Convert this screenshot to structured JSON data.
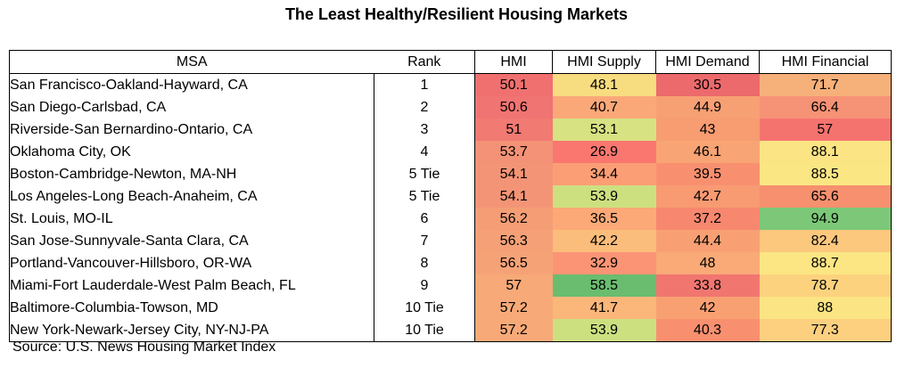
{
  "title": "The Least Healthy/Resilient Housing Markets",
  "source": "Source:  U.S. News Housing Market Index",
  "chart_data": {
    "type": "table",
    "columns": [
      "MSA",
      "Rank",
      "HMI",
      "HMI Supply",
      "HMI Demand",
      "HMI Financial"
    ],
    "rows": [
      {
        "msa": "San Francisco-Oakland-Hayward, CA",
        "rank": "1",
        "values": [
          "50.1",
          "48.1",
          "30.5",
          "71.7"
        ]
      },
      {
        "msa": "San Diego-Carlsbad, CA",
        "rank": "2",
        "values": [
          "50.6",
          "40.7",
          "44.9",
          "66.4"
        ]
      },
      {
        "msa": "Riverside-San Bernardino-Ontario, CA",
        "rank": "3",
        "values": [
          "51",
          "53.1",
          "43",
          "57"
        ]
      },
      {
        "msa": "Oklahoma City, OK",
        "rank": "4",
        "values": [
          "53.7",
          "26.9",
          "46.1",
          "88.1"
        ]
      },
      {
        "msa": "Boston-Cambridge-Newton, MA-NH",
        "rank": "5 Tie",
        "values": [
          "54.1",
          "34.4",
          "39.5",
          "88.5"
        ]
      },
      {
        "msa": "Los Angeles-Long Beach-Anaheim, CA",
        "rank": "5 Tie",
        "values": [
          "54.1",
          "53.9",
          "42.7",
          "65.6"
        ]
      },
      {
        "msa": "St. Louis, MO-IL",
        "rank": "6",
        "values": [
          "56.2",
          "36.5",
          "37.2",
          "94.9"
        ]
      },
      {
        "msa": "San Jose-Sunnyvale-Santa Clara, CA",
        "rank": "7",
        "values": [
          "56.3",
          "42.2",
          "44.4",
          "82.4"
        ]
      },
      {
        "msa": "Portland-Vancouver-Hillsboro, OR-WA",
        "rank": "8",
        "values": [
          "56.5",
          "32.9",
          "48",
          "88.7"
        ]
      },
      {
        "msa": "Miami-Fort Lauderdale-West Palm Beach, FL",
        "rank": "9",
        "values": [
          "57",
          "58.5",
          "33.8",
          "78.7"
        ]
      },
      {
        "msa": "Baltimore-Columbia-Towson, MD",
        "rank": "10 Tie",
        "values": [
          "57.2",
          "41.7",
          "42",
          "88"
        ]
      },
      {
        "msa": "New York-Newark-Jersey City, NY-NJ-PA",
        "rank": "10 Tie",
        "values": [
          "57.2",
          "53.9",
          "40.3",
          "77.3"
        ]
      }
    ],
    "cell_colors": [
      [
        "#f07070",
        "#f8dc80",
        "#ec6a6c",
        "#f6b07a"
      ],
      [
        "#f07472",
        "#fba878",
        "#f7a074",
        "#f69276"
      ],
      [
        "#f17a72",
        "#d7e283",
        "#f89c72",
        "#f5736f"
      ],
      [
        "#f39276",
        "#f9776f",
        "#f8a474",
        "#fbe483"
      ],
      [
        "#f49476",
        "#fc9e75",
        "#f89070",
        "#fae683"
      ],
      [
        "#f49476",
        "#cce080",
        "#f89a72",
        "#f6906f"
      ],
      [
        "#f59e76",
        "#fca977",
        "#f7886f",
        "#7cc878"
      ],
      [
        "#f5a077",
        "#fbbd7b",
        "#f8a074",
        "#fbc87d"
      ],
      [
        "#f6a277",
        "#fb9474",
        "#f9aa77",
        "#fbe683"
      ],
      [
        "#f7a978",
        "#6abd6f",
        "#f17670",
        "#fcd27f"
      ],
      [
        "#f7aa78",
        "#fbb67a",
        "#f8a072",
        "#fbe483"
      ],
      [
        "#f7aa78",
        "#cce080",
        "#f89070",
        "#fcd07f"
      ]
    ]
  }
}
